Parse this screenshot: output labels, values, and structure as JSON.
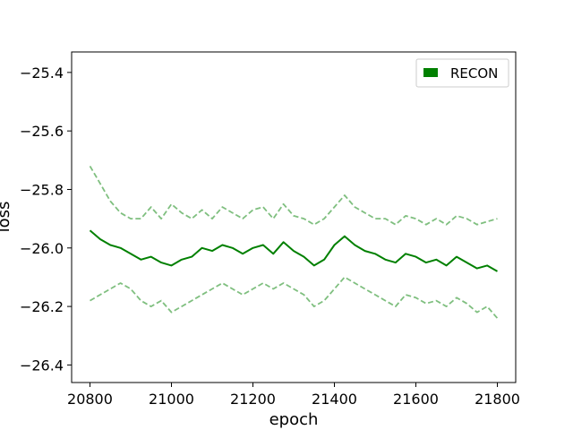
{
  "chart_data": {
    "type": "line",
    "title": "",
    "xlabel": "epoch",
    "ylabel": "loss",
    "xlim": [
      20755,
      21845
    ],
    "ylim": [
      -26.46,
      -25.33
    ],
    "xticks": [
      20800,
      21000,
      21200,
      21400,
      21600,
      21800
    ],
    "xtick_labels": [
      "20800",
      "21000",
      "21200",
      "21400",
      "21600",
      "21800"
    ],
    "yticks": [
      -26.4,
      -26.2,
      -26.0,
      -25.8,
      -25.6,
      -25.4
    ],
    "ytick_labels": [
      "−26.4",
      "−26.2",
      "−26.0",
      "−25.8",
      "−25.6",
      "−25.4"
    ],
    "grid": false,
    "legend": {
      "placement": "top-right",
      "entries": [
        "RECON"
      ]
    },
    "colors": {
      "recon": "#008000",
      "band": "#7fbf7f"
    },
    "series": [
      {
        "name": "RECON",
        "style": "solid",
        "x": [
          20800,
          20825,
          20850,
          20875,
          20900,
          20925,
          20950,
          20975,
          21000,
          21025,
          21050,
          21075,
          21100,
          21125,
          21150,
          21175,
          21200,
          21225,
          21250,
          21275,
          21300,
          21325,
          21350,
          21375,
          21400,
          21425,
          21450,
          21475,
          21500,
          21525,
          21550,
          21575,
          21600,
          21625,
          21650,
          21675,
          21700,
          21725,
          21750,
          21775,
          21800
        ],
        "y": [
          -25.94,
          -25.97,
          -25.99,
          -26.0,
          -26.02,
          -26.04,
          -26.03,
          -26.05,
          -26.06,
          -26.04,
          -26.03,
          -26.0,
          -26.01,
          -25.99,
          -26.0,
          -26.02,
          -26.0,
          -25.99,
          -26.02,
          -25.98,
          -26.01,
          -26.03,
          -26.06,
          -26.04,
          -25.99,
          -25.96,
          -25.99,
          -26.01,
          -26.02,
          -26.04,
          -26.05,
          -26.02,
          -26.03,
          -26.05,
          -26.04,
          -26.06,
          -26.03,
          -26.05,
          -26.07,
          -26.06,
          -26.08
        ]
      },
      {
        "name": "",
        "style": "dashed",
        "x": [
          20800,
          20825,
          20850,
          20875,
          20900,
          20925,
          20950,
          20975,
          21000,
          21025,
          21050,
          21075,
          21100,
          21125,
          21150,
          21175,
          21200,
          21225,
          21250,
          21275,
          21300,
          21325,
          21350,
          21375,
          21400,
          21425,
          21450,
          21475,
          21500,
          21525,
          21550,
          21575,
          21600,
          21625,
          21650,
          21675,
          21700,
          21725,
          21750,
          21775,
          21800
        ],
        "y": [
          -25.72,
          -25.78,
          -25.84,
          -25.88,
          -25.9,
          -25.9,
          -25.86,
          -25.9,
          -25.85,
          -25.88,
          -25.9,
          -25.87,
          -25.9,
          -25.86,
          -25.88,
          -25.9,
          -25.87,
          -25.86,
          -25.9,
          -25.85,
          -25.89,
          -25.9,
          -25.92,
          -25.9,
          -25.86,
          -25.82,
          -25.86,
          -25.88,
          -25.9,
          -25.9,
          -25.92,
          -25.89,
          -25.9,
          -25.92,
          -25.9,
          -25.92,
          -25.89,
          -25.9,
          -25.92,
          -25.91,
          -25.9
        ]
      },
      {
        "name": "",
        "style": "dashed",
        "x": [
          20800,
          20825,
          20850,
          20875,
          20900,
          20925,
          20950,
          20975,
          21000,
          21025,
          21050,
          21075,
          21100,
          21125,
          21150,
          21175,
          21200,
          21225,
          21250,
          21275,
          21300,
          21325,
          21350,
          21375,
          21400,
          21425,
          21450,
          21475,
          21500,
          21525,
          21550,
          21575,
          21600,
          21625,
          21650,
          21675,
          21700,
          21725,
          21750,
          21775,
          21800
        ],
        "y": [
          -26.18,
          -26.16,
          -26.14,
          -26.12,
          -26.14,
          -26.18,
          -26.2,
          -26.18,
          -26.22,
          -26.2,
          -26.18,
          -26.16,
          -26.14,
          -26.12,
          -26.14,
          -26.16,
          -26.14,
          -26.12,
          -26.14,
          -26.12,
          -26.14,
          -26.16,
          -26.2,
          -26.18,
          -26.14,
          -26.1,
          -26.12,
          -26.14,
          -26.16,
          -26.18,
          -26.2,
          -26.16,
          -26.17,
          -26.19,
          -26.18,
          -26.2,
          -26.17,
          -26.19,
          -26.22,
          -26.2,
          -26.24
        ]
      }
    ]
  }
}
